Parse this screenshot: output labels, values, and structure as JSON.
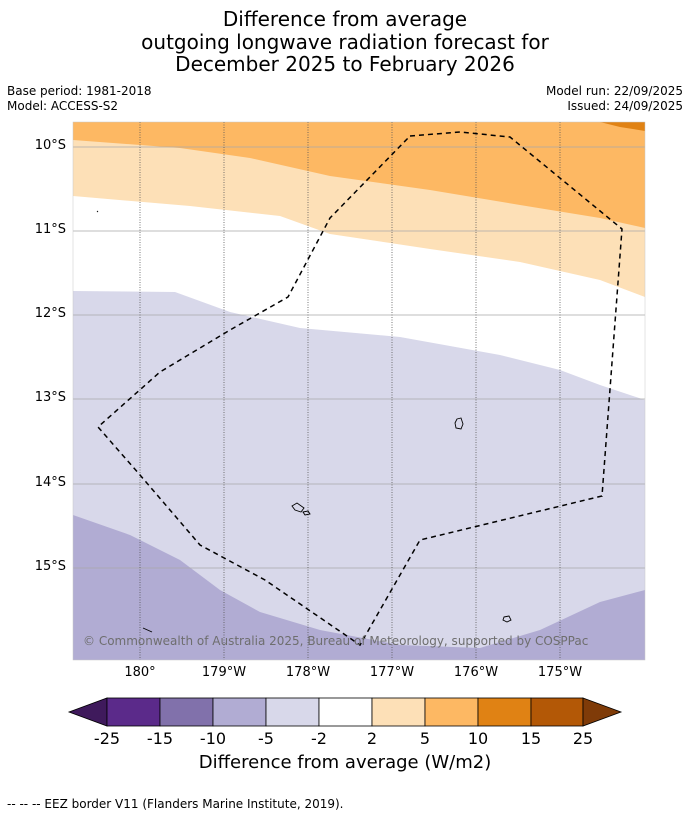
{
  "title": {
    "line1": "Difference from average",
    "line2": "outgoing longwave radiation forecast for",
    "line3": "December 2025 to February 2026"
  },
  "meta": {
    "base_period": "Base period: 1981-2018",
    "model": "Model: ACCESS-S2",
    "model_run": "Model run: 22/09/2025",
    "issued": "Issued: 24/09/2025"
  },
  "map": {
    "lat_labels": [
      "10°S",
      "11°S",
      "12°S",
      "13°S",
      "14°S",
      "15°S"
    ],
    "lon_labels": [
      "180°",
      "179°W",
      "178°W",
      "177°W",
      "176°W",
      "175°W"
    ],
    "copyright": "© Commonwealth of Australia 2025, Bureau of Meteorology, supported by COSPPac"
  },
  "colorbar": {
    "ticks": [
      "-25",
      "-15",
      "-10",
      "-5",
      "-2",
      "2",
      "5",
      "10",
      "15",
      "25"
    ],
    "colors": [
      "#3f1a5c",
      "#5b2a8a",
      "#8171ab",
      "#b1acd3",
      "#d8d8ea",
      "#ffffff",
      "#fde0b7",
      "#fdb863",
      "#e08214",
      "#b35806",
      "#7f3b08"
    ],
    "title": "Difference from average (W/m2)"
  },
  "footer": "--  --  -- EEZ border V11 (Flanders Marine Institute, 2019).",
  "colors": {
    "dark_orange": "#e08214",
    "orange": "#fdb863",
    "light_orange": "#fde0b7",
    "white": "#ffffff",
    "light_purple": "#d8d8ea",
    "purple": "#b1acd3"
  }
}
